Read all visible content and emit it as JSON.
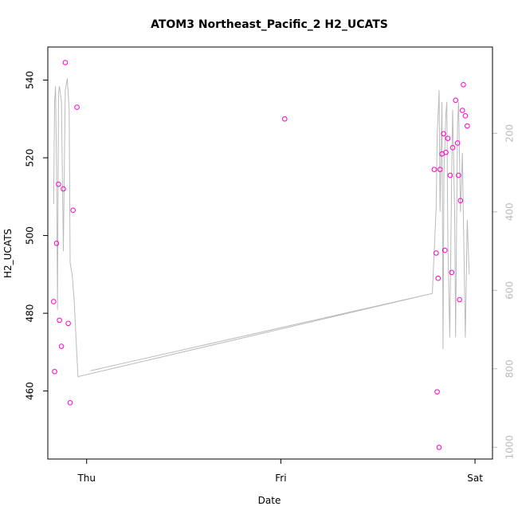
{
  "chart_data": {
    "type": "scatter",
    "title": "ATOM3 Northeast_Pacific_2 H2_UCATS",
    "xlabel": "Date",
    "ylabel": "H2_UCATS",
    "x_ticks": [
      "Thu",
      "Fri",
      "Sat"
    ],
    "x_range_days": [
      -0.2,
      2.09
    ],
    "ylim": [
      442.5,
      548.5
    ],
    "y_ticks": [
      460,
      480,
      500,
      520,
      540
    ],
    "y2_ticks": [
      200,
      400,
      600,
      800,
      1000
    ],
    "y2lim": [
      -20,
      1030
    ],
    "y2_reversed": true,
    "colors": {
      "points": "#ff00cc",
      "line": "#bbbbbb",
      "axis": "#000000",
      "axis_right": "#bbbbbb"
    },
    "series": [
      {
        "values": [
          [
            -0.17,
            483.0
          ],
          [
            -0.165,
            465.0
          ],
          [
            -0.155,
            498.0
          ],
          [
            -0.145,
            513.2
          ],
          [
            -0.14,
            478.2
          ],
          [
            -0.13,
            471.5
          ],
          [
            -0.12,
            512.0
          ],
          [
            -0.11,
            544.5
          ],
          [
            -0.095,
            477.4
          ],
          [
            -0.085,
            457.0
          ],
          [
            -0.07,
            506.5
          ],
          [
            -0.05,
            533.0
          ],
          [
            1.02,
            530.0
          ],
          [
            1.79,
            517.0
          ],
          [
            1.8,
            495.5
          ],
          [
            1.805,
            459.8
          ],
          [
            1.81,
            489.0
          ],
          [
            1.815,
            445.5
          ],
          [
            1.82,
            517.0
          ],
          [
            1.83,
            521.0
          ],
          [
            1.838,
            526.2
          ],
          [
            1.845,
            496.2
          ],
          [
            1.85,
            521.4
          ],
          [
            1.86,
            525.0
          ],
          [
            1.872,
            515.5
          ],
          [
            1.88,
            490.5
          ],
          [
            1.885,
            522.6
          ],
          [
            1.9,
            534.8
          ],
          [
            1.91,
            523.8
          ],
          [
            1.915,
            515.5
          ],
          [
            1.92,
            483.5
          ],
          [
            1.925,
            509.0
          ],
          [
            1.935,
            532.2
          ],
          [
            1.94,
            538.8
          ],
          [
            1.95,
            530.8
          ],
          [
            1.96,
            528.2
          ]
        ]
      },
      {
        "axis": "right",
        "values": [
          [
            -0.17,
            380
          ],
          [
            -0.165,
            120
          ],
          [
            -0.16,
            80
          ],
          [
            -0.155,
            300
          ],
          [
            -0.15,
            650
          ],
          [
            -0.145,
            100
          ],
          [
            -0.14,
            80
          ],
          [
            -0.13,
            120
          ],
          [
            -0.12,
            500
          ],
          [
            -0.11,
            90
          ],
          [
            -0.1,
            60
          ],
          [
            -0.09,
            140
          ],
          [
            -0.085,
            530
          ],
          [
            -0.075,
            560
          ],
          [
            -0.065,
            620
          ],
          [
            -0.045,
            820
          ],
          [
            1.78,
            608
          ],
          [
            0.02,
            805
          ],
          [
            1.78,
            608
          ],
          [
            1.8,
            390
          ],
          [
            1.805,
            200
          ],
          [
            1.81,
            150
          ],
          [
            1.815,
            90
          ],
          [
            1.82,
            400
          ],
          [
            1.83,
            120
          ],
          [
            1.835,
            750
          ],
          [
            1.84,
            300
          ],
          [
            1.85,
            150
          ],
          [
            1.855,
            120
          ],
          [
            1.86,
            480
          ],
          [
            1.87,
            720
          ],
          [
            1.88,
            300
          ],
          [
            1.885,
            140
          ],
          [
            1.895,
            400
          ],
          [
            1.9,
            720
          ],
          [
            1.91,
            180
          ],
          [
            1.915,
            120
          ],
          [
            1.925,
            400
          ],
          [
            1.935,
            250
          ],
          [
            1.95,
            720
          ],
          [
            1.96,
            420
          ],
          [
            1.97,
            560
          ]
        ]
      }
    ]
  }
}
